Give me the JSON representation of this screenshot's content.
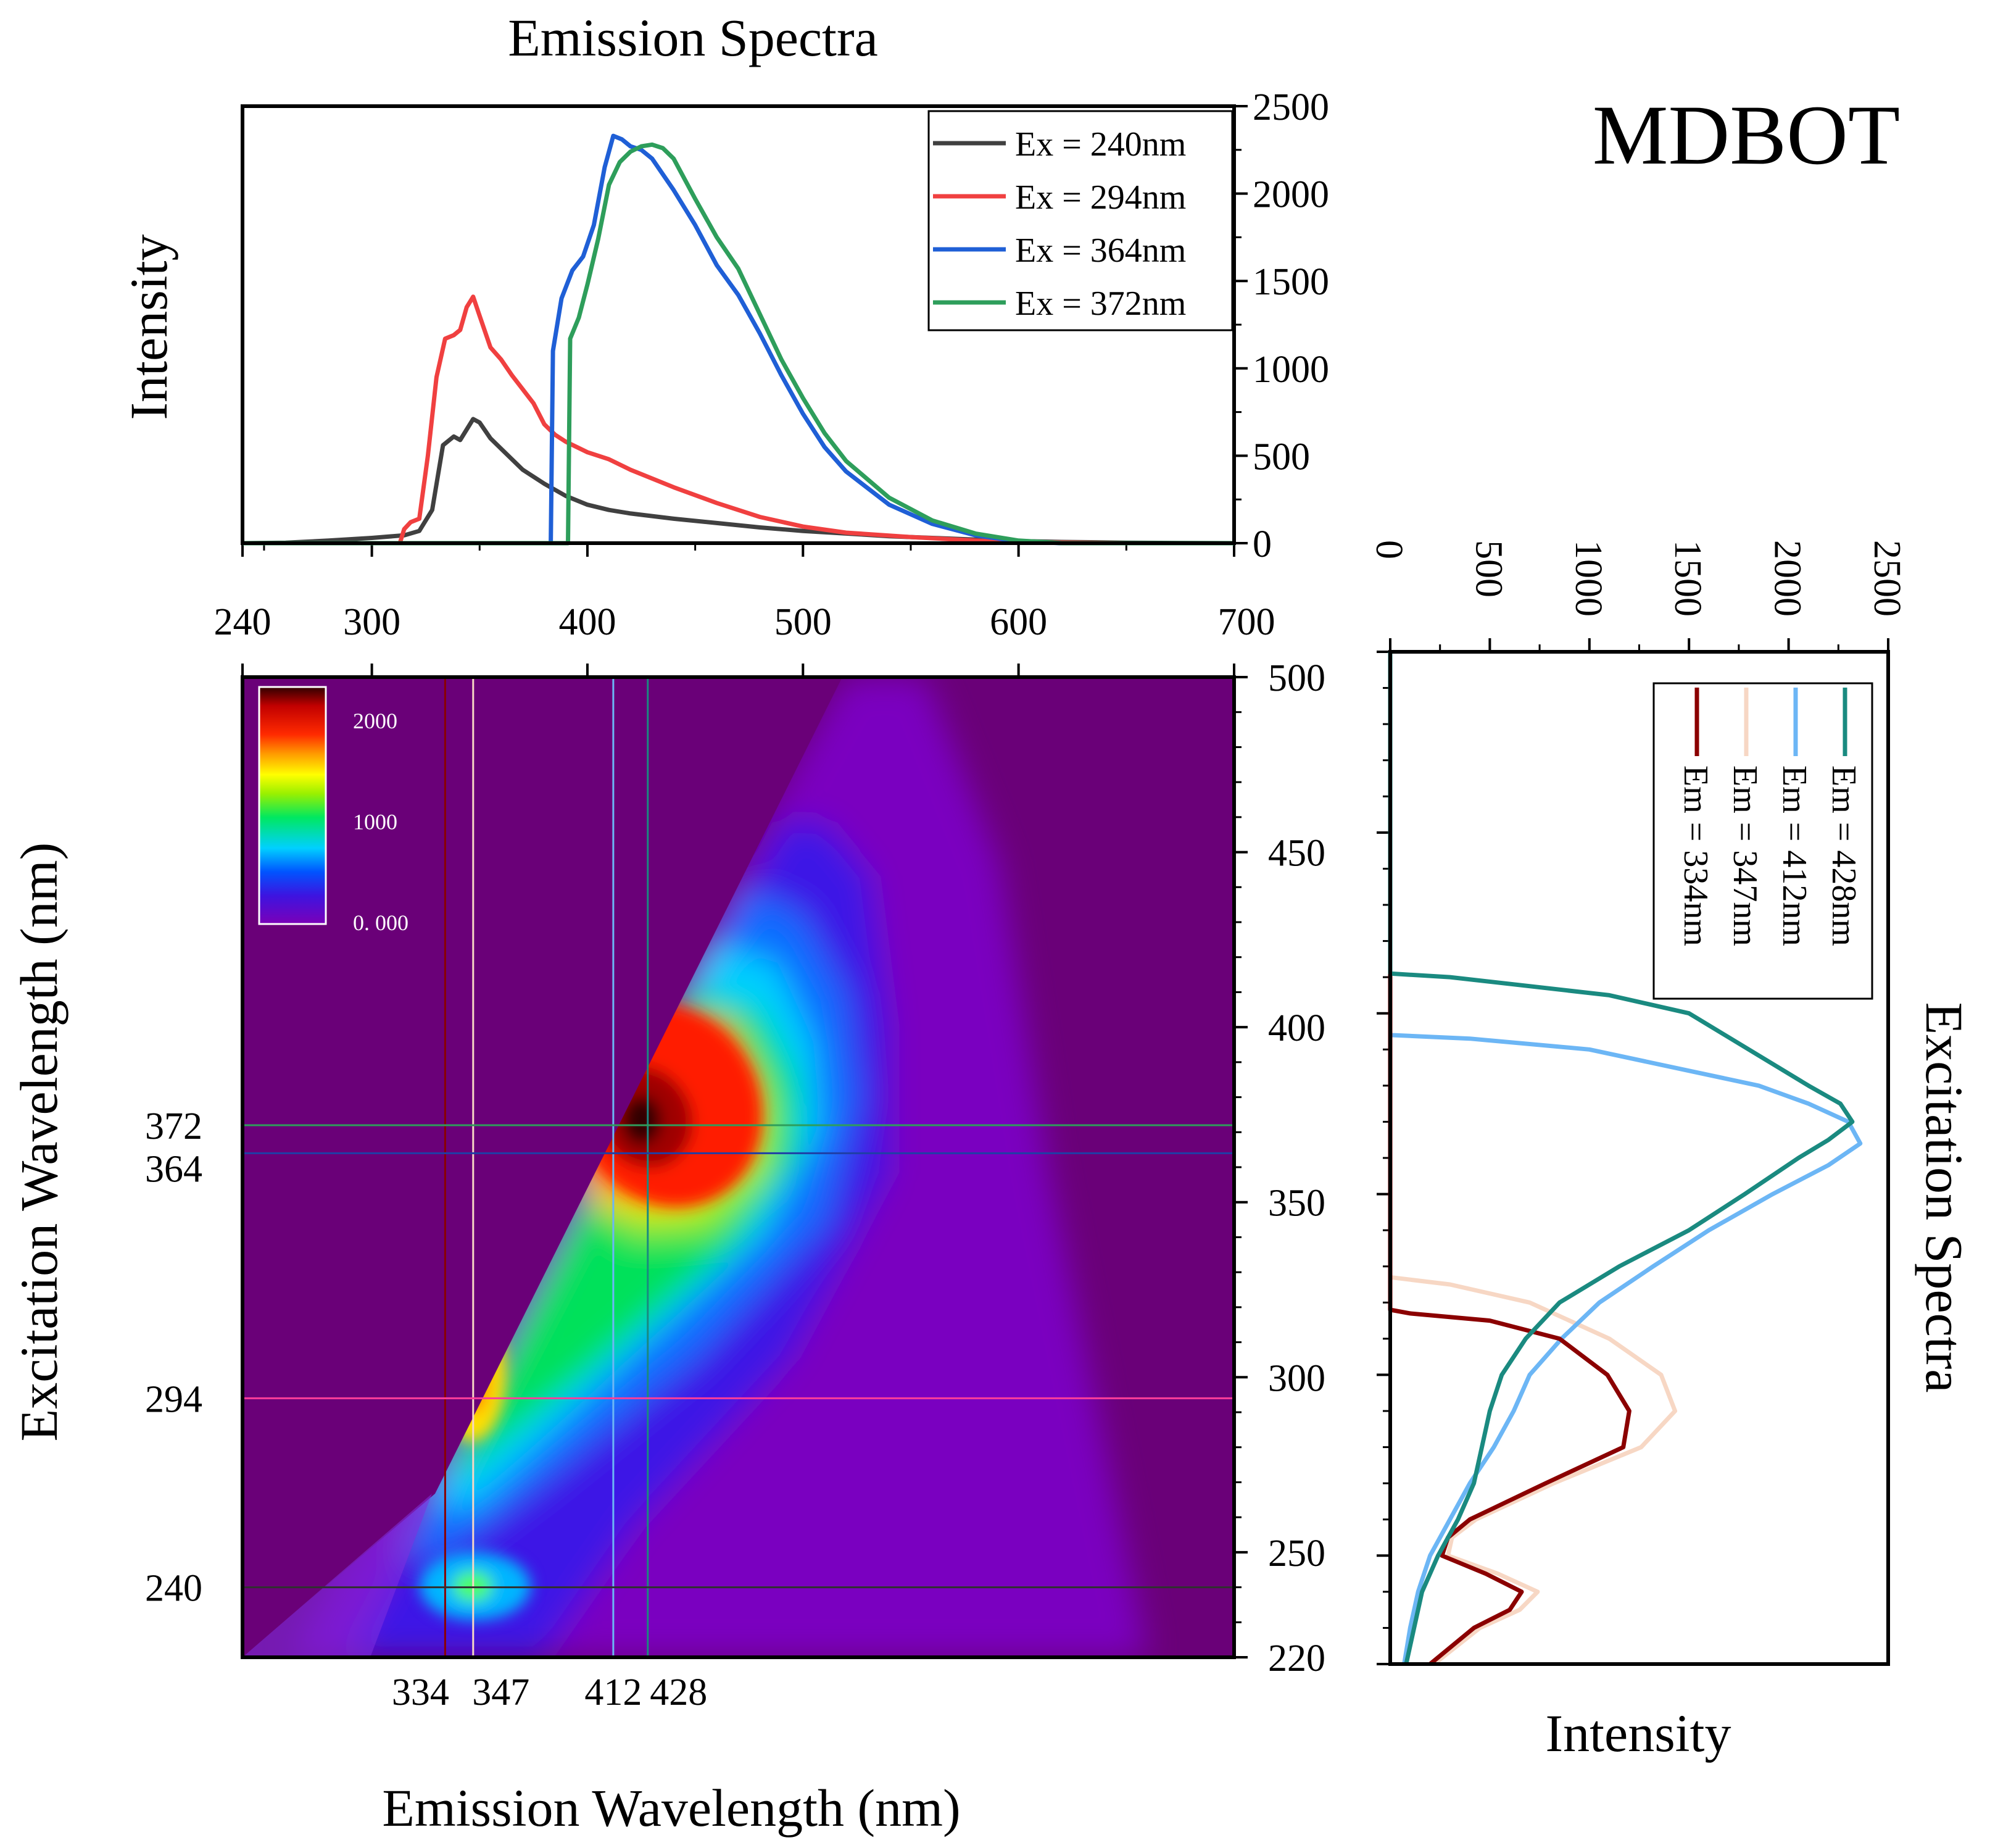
{
  "page": {
    "sample_label": "MDBOT"
  },
  "chart_data": [
    {
      "id": "emission",
      "type": "line",
      "title": "Emission Spectra",
      "xlabel": "",
      "ylabel": "Intensity",
      "xlim": [
        240,
        700
      ],
      "ylim": [
        0,
        2500
      ],
      "x_ticks": [
        "240",
        "300",
        "400",
        "500",
        "600",
        "700"
      ],
      "x_tick_values": [
        240,
        300,
        400,
        500,
        600,
        700
      ],
      "y_ticks": [
        "0",
        "500",
        "1000",
        "1500",
        "2000",
        "2500"
      ],
      "y_tick_values": [
        0,
        500,
        1000,
        1500,
        2000,
        2500
      ],
      "legend_position": "top-right",
      "series": [
        {
          "name": "Ex = 240nm",
          "color": "#404040",
          "points": [
            [
              240,
              0
            ],
            [
              260,
              3
            ],
            [
              280,
              15
            ],
            [
              300,
              30
            ],
            [
              315,
              45
            ],
            [
              322,
              70
            ],
            [
              328,
              190
            ],
            [
              333,
              560
            ],
            [
              338,
              610
            ],
            [
              341,
              590
            ],
            [
              344,
              650
            ],
            [
              347,
              710
            ],
            [
              350,
              690
            ],
            [
              355,
              600
            ],
            [
              360,
              540
            ],
            [
              370,
              420
            ],
            [
              380,
              340
            ],
            [
              390,
              270
            ],
            [
              400,
              220
            ],
            [
              410,
              190
            ],
            [
              420,
              170
            ],
            [
              440,
              140
            ],
            [
              460,
              115
            ],
            [
              480,
              90
            ],
            [
              500,
              70
            ],
            [
              520,
              55
            ],
            [
              540,
              40
            ],
            [
              560,
              30
            ],
            [
              580,
              20
            ],
            [
              600,
              12
            ],
            [
              620,
              7
            ],
            [
              650,
              3
            ],
            [
              700,
              0
            ]
          ]
        },
        {
          "name": "Ex = 294nm",
          "color": "#f04040",
          "points": [
            [
              240,
              0
            ],
            [
              300,
              0
            ],
            [
              313,
              0
            ],
            [
              315,
              80
            ],
            [
              318,
              120
            ],
            [
              322,
              140
            ],
            [
              326,
              500
            ],
            [
              330,
              950
            ],
            [
              334,
              1170
            ],
            [
              338,
              1190
            ],
            [
              341,
              1220
            ],
            [
              344,
              1350
            ],
            [
              347,
              1410
            ],
            [
              350,
              1300
            ],
            [
              355,
              1120
            ],
            [
              360,
              1050
            ],
            [
              365,
              960
            ],
            [
              370,
              880
            ],
            [
              375,
              800
            ],
            [
              380,
              680
            ],
            [
              385,
              620
            ],
            [
              390,
              580
            ],
            [
              400,
              520
            ],
            [
              410,
              480
            ],
            [
              420,
              420
            ],
            [
              430,
              370
            ],
            [
              440,
              320
            ],
            [
              460,
              230
            ],
            [
              480,
              150
            ],
            [
              500,
              95
            ],
            [
              520,
              60
            ],
            [
              550,
              35
            ],
            [
              580,
              15
            ],
            [
              600,
              6
            ],
            [
              650,
              0
            ],
            [
              700,
              0
            ]
          ]
        },
        {
          "name": "Ex = 364nm",
          "color": "#1f5fd6",
          "points": [
            [
              240,
              0
            ],
            [
              383,
              0
            ],
            [
              384,
              1100
            ],
            [
              388,
              1400
            ],
            [
              393,
              1560
            ],
            [
              398,
              1640
            ],
            [
              403,
              1820
            ],
            [
              408,
              2150
            ],
            [
              412,
              2330
            ],
            [
              416,
              2310
            ],
            [
              420,
              2270
            ],
            [
              425,
              2250
            ],
            [
              430,
              2200
            ],
            [
              440,
              2020
            ],
            [
              450,
              1820
            ],
            [
              460,
              1590
            ],
            [
              470,
              1420
            ],
            [
              480,
              1200
            ],
            [
              490,
              960
            ],
            [
              500,
              740
            ],
            [
              510,
              550
            ],
            [
              520,
              410
            ],
            [
              540,
              220
            ],
            [
              560,
              110
            ],
            [
              580,
              45
            ],
            [
              600,
              10
            ],
            [
              620,
              0
            ],
            [
              700,
              0
            ]
          ]
        },
        {
          "name": "Ex = 372nm",
          "color": "#2e9e5b",
          "points": [
            [
              240,
              0
            ],
            [
              391,
              0
            ],
            [
              392,
              1170
            ],
            [
              396,
              1290
            ],
            [
              400,
              1480
            ],
            [
              405,
              1740
            ],
            [
              410,
              2050
            ],
            [
              415,
              2180
            ],
            [
              420,
              2240
            ],
            [
              425,
              2270
            ],
            [
              430,
              2280
            ],
            [
              435,
              2260
            ],
            [
              440,
              2200
            ],
            [
              450,
              1970
            ],
            [
              460,
              1750
            ],
            [
              470,
              1570
            ],
            [
              480,
              1310
            ],
            [
              490,
              1050
            ],
            [
              500,
              830
            ],
            [
              510,
              630
            ],
            [
              520,
              470
            ],
            [
              540,
              260
            ],
            [
              560,
              130
            ],
            [
              580,
              55
            ],
            [
              600,
              15
            ],
            [
              620,
              0
            ],
            [
              700,
              0
            ]
          ]
        }
      ]
    },
    {
      "id": "map",
      "type": "heatmap",
      "title": "",
      "xlabel": "Emission Wavelength (nm)",
      "ylabel": "Excitation Wavelength (nm)",
      "xlim": [
        240,
        700
      ],
      "ylim": [
        220,
        500
      ],
      "right_y_ticks": [
        "220",
        "250",
        "300",
        "350",
        "400",
        "450",
        "500"
      ],
      "right_y_tick_values": [
        220,
        250,
        300,
        350,
        400,
        450,
        500
      ],
      "colorbar": {
        "labels": [
          "2000",
          "1000",
          "0. 000"
        ],
        "values": [
          2000,
          1000,
          0
        ],
        "max": 2350
      },
      "vertical_markers": [
        {
          "label": "334",
          "value": 334,
          "color": "#8b0000"
        },
        {
          "label": "347",
          "value": 347,
          "color": "#f7d7c4"
        },
        {
          "label": "412",
          "value": 412,
          "color": "#6cb6f5"
        },
        {
          "label": "428",
          "value": 428,
          "color": "#1a8a80"
        }
      ],
      "horizontal_markers": [
        {
          "label": "372",
          "value": 372,
          "color": "#2e9e5b"
        },
        {
          "label": "364",
          "value": 364,
          "color": "#1f3fa6"
        },
        {
          "label": "294",
          "value": 294,
          "color": "#ff3d9a"
        },
        {
          "label": "240",
          "value": 240,
          "color": "#303030"
        }
      ],
      "peaks": [
        {
          "em": 428,
          "ex": 370,
          "intensity": 2330
        },
        {
          "em": 347,
          "ex": 294,
          "intensity": 1400
        },
        {
          "em": 347,
          "ex": 240,
          "intensity": 700
        }
      ]
    },
    {
      "id": "excitation",
      "type": "line",
      "title": "Excitation Spectra",
      "xlabel": "Intensity",
      "ylabel": "",
      "orientation": "vertical",
      "intensity_lim": [
        0,
        2500
      ],
      "wavelength_lim": [
        220,
        500
      ],
      "intensity_ticks": [
        "0",
        "500",
        "1000",
        "1500",
        "2000",
        "2500"
      ],
      "intensity_tick_values": [
        0,
        500,
        1000,
        1500,
        2000,
        2500
      ],
      "legend_position": "top-right",
      "series": [
        {
          "name": "Em = 428nm",
          "color": "#1a8a80",
          "points": [
            [
              220,
              80
            ],
            [
              230,
              120
            ],
            [
              240,
              160
            ],
            [
              250,
              240
            ],
            [
              260,
              340
            ],
            [
              270,
              420
            ],
            [
              280,
              460
            ],
            [
              290,
              500
            ],
            [
              300,
              560
            ],
            [
              310,
              680
            ],
            [
              320,
              850
            ],
            [
              330,
              1150
            ],
            [
              340,
              1500
            ],
            [
              350,
              1780
            ],
            [
              360,
              2050
            ],
            [
              365,
              2200
            ],
            [
              370,
              2320
            ],
            [
              375,
              2260
            ],
            [
              380,
              2100
            ],
            [
              390,
              1800
            ],
            [
              400,
              1500
            ],
            [
              405,
              1100
            ],
            [
              410,
              300
            ],
            [
              411,
              0
            ],
            [
              500,
              0
            ]
          ]
        },
        {
          "name": "Em = 412nm",
          "color": "#6cb6f5",
          "points": [
            [
              220,
              70
            ],
            [
              230,
              100
            ],
            [
              240,
              140
            ],
            [
              250,
              200
            ],
            [
              260,
              300
            ],
            [
              270,
              400
            ],
            [
              280,
              520
            ],
            [
              290,
              620
            ],
            [
              300,
              700
            ],
            [
              310,
              860
            ],
            [
              320,
              1050
            ],
            [
              330,
              1320
            ],
            [
              340,
              1600
            ],
            [
              350,
              1920
            ],
            [
              358,
              2200
            ],
            [
              364,
              2360
            ],
            [
              370,
              2300
            ],
            [
              375,
              2100
            ],
            [
              380,
              1850
            ],
            [
              390,
              1000
            ],
            [
              393,
              400
            ],
            [
              394,
              0
            ],
            [
              500,
              0
            ]
          ]
        },
        {
          "name": "Em = 347nm",
          "color": "#f7d7c4",
          "points": [
            [
              220,
              220
            ],
            [
              230,
              450
            ],
            [
              235,
              650
            ],
            [
              240,
              740
            ],
            [
              245,
              540
            ],
            [
              250,
              290
            ],
            [
              255,
              310
            ],
            [
              260,
              430
            ],
            [
              270,
              820
            ],
            [
              280,
              1260
            ],
            [
              290,
              1430
            ],
            [
              300,
              1360
            ],
            [
              310,
              1100
            ],
            [
              320,
              700
            ],
            [
              325,
              300
            ],
            [
              327,
              0
            ],
            [
              500,
              0
            ]
          ]
        },
        {
          "name": "Em = 334nm",
          "color": "#8b0000",
          "points": [
            [
              220,
              200
            ],
            [
              230,
              420
            ],
            [
              235,
              600
            ],
            [
              240,
              660
            ],
            [
              245,
              480
            ],
            [
              250,
              260
            ],
            [
              255,
              290
            ],
            [
              260,
              400
            ],
            [
              270,
              780
            ],
            [
              280,
              1170
            ],
            [
              290,
              1200
            ],
            [
              300,
              1090
            ],
            [
              310,
              850
            ],
            [
              315,
              500
            ],
            [
              317,
              100
            ],
            [
              318,
              0
            ],
            [
              500,
              0
            ]
          ]
        }
      ]
    }
  ]
}
